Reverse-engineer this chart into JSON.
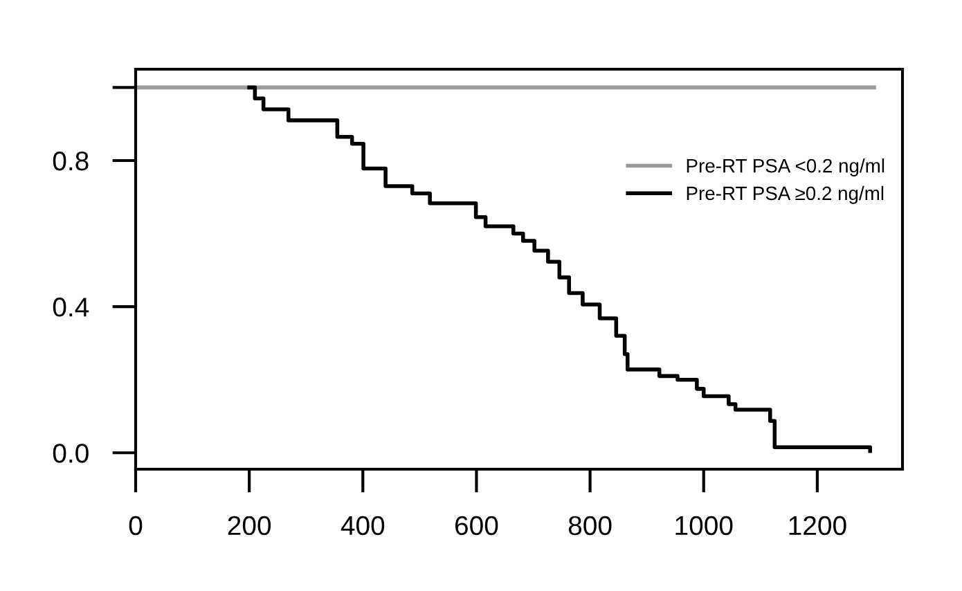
{
  "chart_data": {
    "type": "step",
    "series": [
      {
        "name": "Pre-RT PSA <0.2 ng/ml",
        "color": "#999999",
        "x": [
          0,
          1300
        ],
        "values": [
          1.0,
          1.0
        ]
      },
      {
        "name": "Pre-RT PSA ≥0.2 ng/ml",
        "color": "#000000",
        "x": [
          200,
          210,
          225,
          269,
          355,
          381,
          401,
          440,
          487,
          518,
          599,
          616,
          665,
          682,
          702,
          726,
          746,
          763,
          787,
          817,
          846,
          861,
          866,
          922,
          954,
          988,
          1000,
          1044,
          1056,
          1117,
          1125,
          1293
        ],
        "values": [
          1.0,
          0.97,
          0.94,
          0.91,
          0.865,
          0.846,
          0.778,
          0.73,
          0.71,
          0.683,
          0.645,
          0.62,
          0.6,
          0.58,
          0.553,
          0.523,
          0.48,
          0.437,
          0.406,
          0.368,
          0.32,
          0.27,
          0.228,
          0.21,
          0.2,
          0.175,
          0.155,
          0.133,
          0.118,
          0.087,
          0.015,
          0.005
        ]
      }
    ],
    "xlim": [
      0,
      1350
    ],
    "ylim": [
      -0.045,
      1.05
    ],
    "xticks": [
      0,
      200,
      400,
      600,
      800,
      1000,
      1200
    ],
    "yticks": [
      {
        "value": 0,
        "label": "0.0"
      },
      0.4,
      0.8,
      {
        "value": 1.0,
        "label": null
      }
    ],
    "legend": "right",
    "grid": false
  }
}
